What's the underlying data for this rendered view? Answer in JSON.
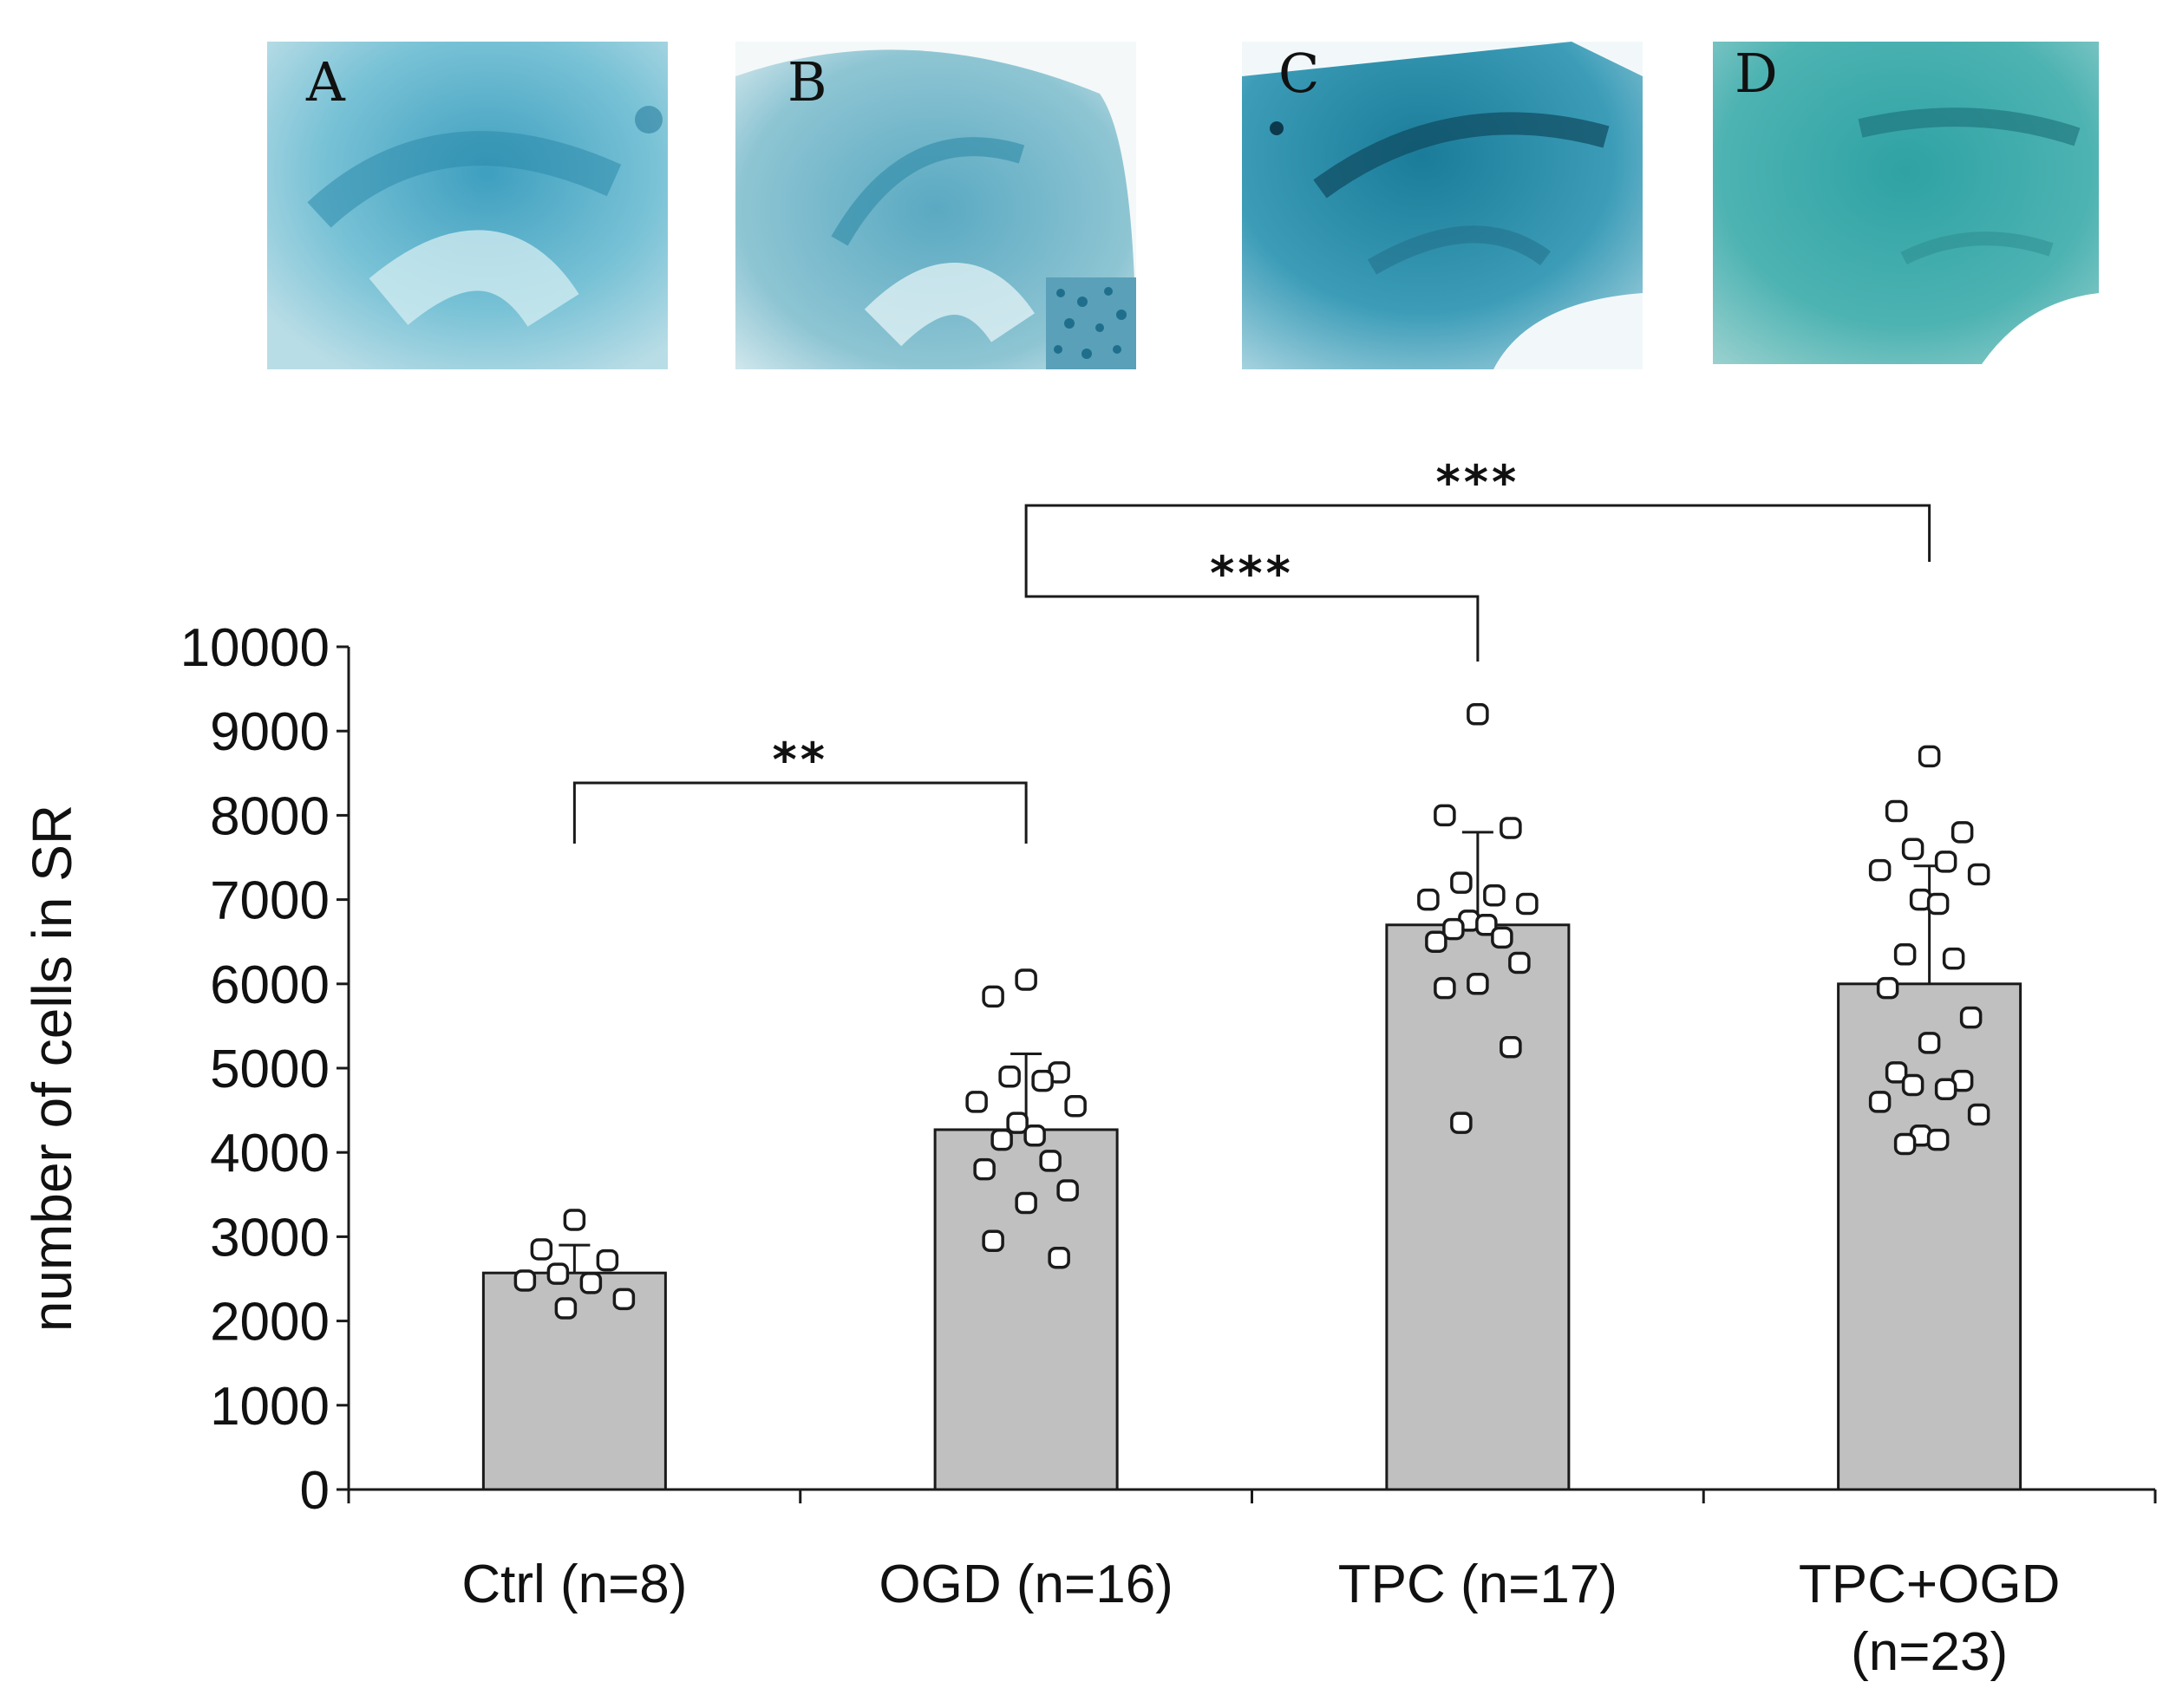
{
  "panels": [
    {
      "letter": "A",
      "description_color": "#5bb3cc"
    },
    {
      "letter": "B",
      "description_color": "#7ab8c9"
    },
    {
      "letter": "C",
      "description_color": "#2f8fa8"
    },
    {
      "letter": "D",
      "description_color": "#44b0b0"
    }
  ],
  "chart_data": {
    "type": "bar",
    "ylabel": "number of cells in SR",
    "ylim": [
      0,
      10000
    ],
    "yticks": [
      0,
      1000,
      2000,
      3000,
      4000,
      5000,
      6000,
      7000,
      8000,
      9000,
      10000
    ],
    "categories": [
      {
        "label": [
          "Ctrl (n=8)"
        ],
        "mean": 2570,
        "sd": 330,
        "points": [
          3200,
          2850,
          2720,
          2560,
          2450,
          2480,
          2260,
          2150
        ]
      },
      {
        "label": [
          "OGD (n=16)"
        ],
        "mean": 4270,
        "sd": 900,
        "points": [
          6050,
          5850,
          4950,
          4900,
          4850,
          4600,
          4550,
          4350,
          4200,
          4150,
          3900,
          3800,
          3550,
          3400,
          2950,
          2750
        ]
      },
      {
        "label": [
          "TPC (n=17)"
        ],
        "mean": 6700,
        "sd": 1100,
        "points": [
          9200,
          8000,
          7850,
          7200,
          7050,
          7000,
          6950,
          6750,
          6700,
          6650,
          6550,
          6500,
          6250,
          6000,
          5950,
          5250,
          4350
        ]
      },
      {
        "label": [
          "TPC+OGD",
          "(n=23)"
        ],
        "mean": 6000,
        "sd": 1400,
        "points": [
          8700,
          8050,
          7800,
          7600,
          7450,
          7350,
          7300,
          7000,
          6950,
          6350,
          6300,
          5950,
          5600,
          5300,
          4950,
          4850,
          4800,
          4750,
          4600,
          4450,
          4200,
          4150,
          4100
        ]
      }
    ],
    "significance": [
      {
        "from": 0,
        "to": 1,
        "label": "**"
      },
      {
        "from": 1,
        "to": 2,
        "label": "***"
      },
      {
        "from": 1,
        "to": 3,
        "label": "***"
      }
    ],
    "colors": {
      "bar": "#c0c0c0",
      "edge": "#1a1a1a",
      "point_fill": "#ffffff"
    }
  }
}
